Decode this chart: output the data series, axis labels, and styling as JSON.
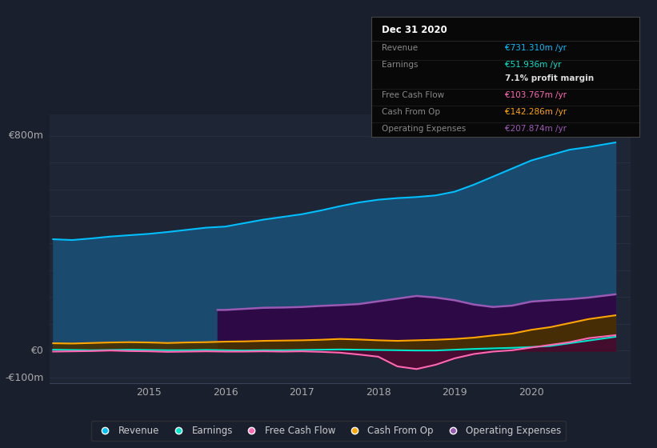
{
  "background_color": "#1a1f2e",
  "plot_bg_color": "#1e2535",
  "ylabel_top": "€800m",
  "ylabel_zero": "€0",
  "ylabel_bottom": "-€100m",
  "ylim": [
    -120,
    880
  ],
  "xlim_start": 2013.7,
  "xlim_end": 2021.3,
  "xticks": [
    2015,
    2016,
    2017,
    2018,
    2019,
    2020
  ],
  "grid_color": "#2a3045",
  "series": {
    "Revenue": {
      "color": "#00bfff",
      "fill_color": "#1a4a6e",
      "years": [
        2013.75,
        2014.0,
        2014.25,
        2014.5,
        2014.75,
        2015.0,
        2015.25,
        2015.5,
        2015.75,
        2016.0,
        2016.25,
        2016.5,
        2016.75,
        2017.0,
        2017.25,
        2017.5,
        2017.75,
        2018.0,
        2018.25,
        2018.5,
        2018.75,
        2019.0,
        2019.25,
        2019.5,
        2019.75,
        2020.0,
        2020.25,
        2020.5,
        2020.75,
        2021.1
      ],
      "values": [
        415,
        412,
        418,
        425,
        430,
        435,
        442,
        450,
        458,
        462,
        475,
        488,
        498,
        508,
        522,
        538,
        552,
        562,
        568,
        572,
        578,
        592,
        618,
        648,
        678,
        708,
        728,
        748,
        758,
        775
      ]
    },
    "Earnings": {
      "color": "#00e5cc",
      "fill_color": "#003333",
      "years": [
        2013.75,
        2014.0,
        2014.25,
        2014.5,
        2014.75,
        2015.0,
        2015.25,
        2015.5,
        2015.75,
        2016.0,
        2016.25,
        2016.5,
        2016.75,
        2017.0,
        2017.25,
        2017.5,
        2017.75,
        2018.0,
        2018.25,
        2018.5,
        2018.75,
        2019.0,
        2019.25,
        2019.5,
        2019.75,
        2020.0,
        2020.25,
        2020.5,
        2020.75,
        2021.1
      ],
      "values": [
        4,
        3,
        2,
        3,
        4,
        3,
        2,
        2,
        3,
        2,
        1,
        2,
        2,
        3,
        4,
        5,
        4,
        3,
        2,
        1,
        1,
        4,
        7,
        9,
        11,
        14,
        18,
        28,
        38,
        52
      ]
    },
    "FreeCashFlow": {
      "color": "#ff69b4",
      "fill_color": "#5a0030",
      "years": [
        2013.75,
        2014.0,
        2014.25,
        2014.5,
        2014.75,
        2015.0,
        2015.25,
        2015.5,
        2015.75,
        2016.0,
        2016.25,
        2016.5,
        2016.75,
        2017.0,
        2017.25,
        2017.5,
        2017.75,
        2018.0,
        2018.25,
        2018.5,
        2018.75,
        2019.0,
        2019.25,
        2019.5,
        2019.75,
        2020.0,
        2020.25,
        2020.5,
        2020.75,
        2021.1
      ],
      "values": [
        -3,
        -2,
        -1,
        1,
        -1,
        -2,
        -4,
        -3,
        -2,
        -3,
        -3,
        -2,
        -3,
        -2,
        -4,
        -7,
        -14,
        -22,
        -58,
        -68,
        -52,
        -28,
        -12,
        -3,
        2,
        12,
        22,
        32,
        47,
        58
      ]
    },
    "CashFromOp": {
      "color": "#ffa500",
      "fill_color": "#4a3200",
      "years": [
        2013.75,
        2014.0,
        2014.25,
        2014.5,
        2014.75,
        2015.0,
        2015.25,
        2015.5,
        2015.75,
        2016.0,
        2016.25,
        2016.5,
        2016.75,
        2017.0,
        2017.25,
        2017.5,
        2017.75,
        2018.0,
        2018.25,
        2018.5,
        2018.75,
        2019.0,
        2019.25,
        2019.5,
        2019.75,
        2020.0,
        2020.25,
        2020.5,
        2020.75,
        2021.1
      ],
      "values": [
        28,
        27,
        29,
        31,
        32,
        31,
        29,
        31,
        32,
        34,
        35,
        37,
        38,
        39,
        41,
        44,
        42,
        39,
        37,
        39,
        41,
        44,
        49,
        57,
        64,
        78,
        88,
        103,
        118,
        132
      ]
    },
    "OperatingExpenses": {
      "color": "#9b59b6",
      "fill_color": "#2d0a45",
      "years": [
        2015.9,
        2016.0,
        2016.25,
        2016.5,
        2016.75,
        2017.0,
        2017.25,
        2017.5,
        2017.75,
        2018.0,
        2018.25,
        2018.5,
        2018.75,
        2019.0,
        2019.25,
        2019.5,
        2019.75,
        2020.0,
        2020.25,
        2020.5,
        2020.75,
        2021.1
      ],
      "values": [
        152,
        152,
        156,
        160,
        161,
        163,
        167,
        170,
        174,
        184,
        194,
        204,
        198,
        188,
        172,
        163,
        168,
        183,
        188,
        192,
        198,
        210
      ]
    }
  },
  "legend": [
    {
      "label": "Revenue",
      "color": "#00bfff"
    },
    {
      "label": "Earnings",
      "color": "#00e5cc"
    },
    {
      "label": "Free Cash Flow",
      "color": "#ff69b4"
    },
    {
      "label": "Cash From Op",
      "color": "#ffa500"
    },
    {
      "label": "Operating Expenses",
      "color": "#9b59b6"
    }
  ],
  "tooltip": {
    "title": "Dec 31 2020",
    "rows": [
      {
        "label": "Revenue",
        "label_color": "#888888",
        "value": "€731.310m /yr",
        "value_color": "#00bfff"
      },
      {
        "label": "Earnings",
        "label_color": "#888888",
        "value": "€51.936m /yr",
        "value_color": "#00e5cc"
      },
      {
        "label": "",
        "label_color": "#888888",
        "value": "7.1% profit margin",
        "value_color": "#dddddd"
      },
      {
        "label": "Free Cash Flow",
        "label_color": "#888888",
        "value": "€103.767m /yr",
        "value_color": "#ff69b4"
      },
      {
        "label": "Cash From Op",
        "label_color": "#888888",
        "value": "€142.286m /yr",
        "value_color": "#ffa500"
      },
      {
        "label": "Operating Expenses",
        "label_color": "#888888",
        "value": "€207.874m /yr",
        "value_color": "#9b59b6"
      }
    ]
  }
}
